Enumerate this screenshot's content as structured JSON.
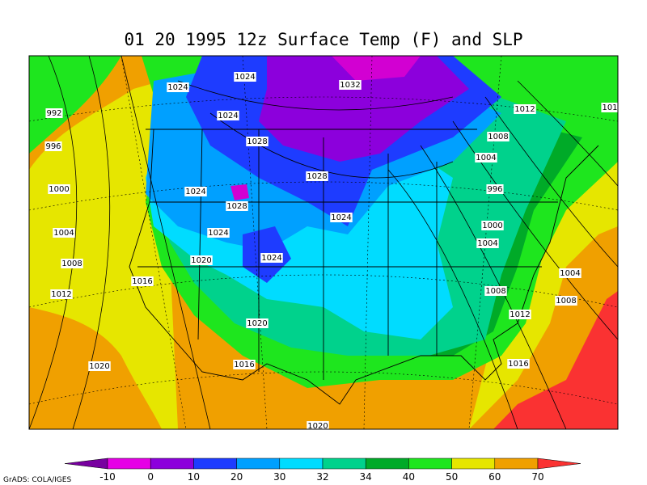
{
  "title": "01 20 1995 12z Surface Temp (F) and SLP",
  "isobar_labels": [
    "1024",
    "1024",
    "1032",
    "1024",
    "1028",
    "1012",
    "101",
    "992",
    "996",
    "1008",
    "1004",
    "1028",
    "996",
    "1000",
    "1024",
    "1028",
    "1024",
    "1000",
    "1004",
    "1024",
    "1004",
    "1020",
    "1024",
    "1008",
    "1004",
    "1016",
    "1012",
    "1008",
    "1008",
    "1012",
    "1020",
    "1016",
    "1016",
    "1020",
    "1020"
  ],
  "colorbar": {
    "labels": [
      "-10",
      "0",
      "10",
      "20",
      "30",
      "32",
      "34",
      "40",
      "50",
      "60",
      "70"
    ],
    "colors": [
      "#7800a0",
      "#e600e6",
      "#8c00dc",
      "#1e3cff",
      "#00a0ff",
      "#00dcff",
      "#00d28c",
      "#00aa28",
      "#1ee61e",
      "#e6e600",
      "#f0a000",
      "#fa3232"
    ]
  },
  "credit": "GrADS: COLA/IGES"
}
